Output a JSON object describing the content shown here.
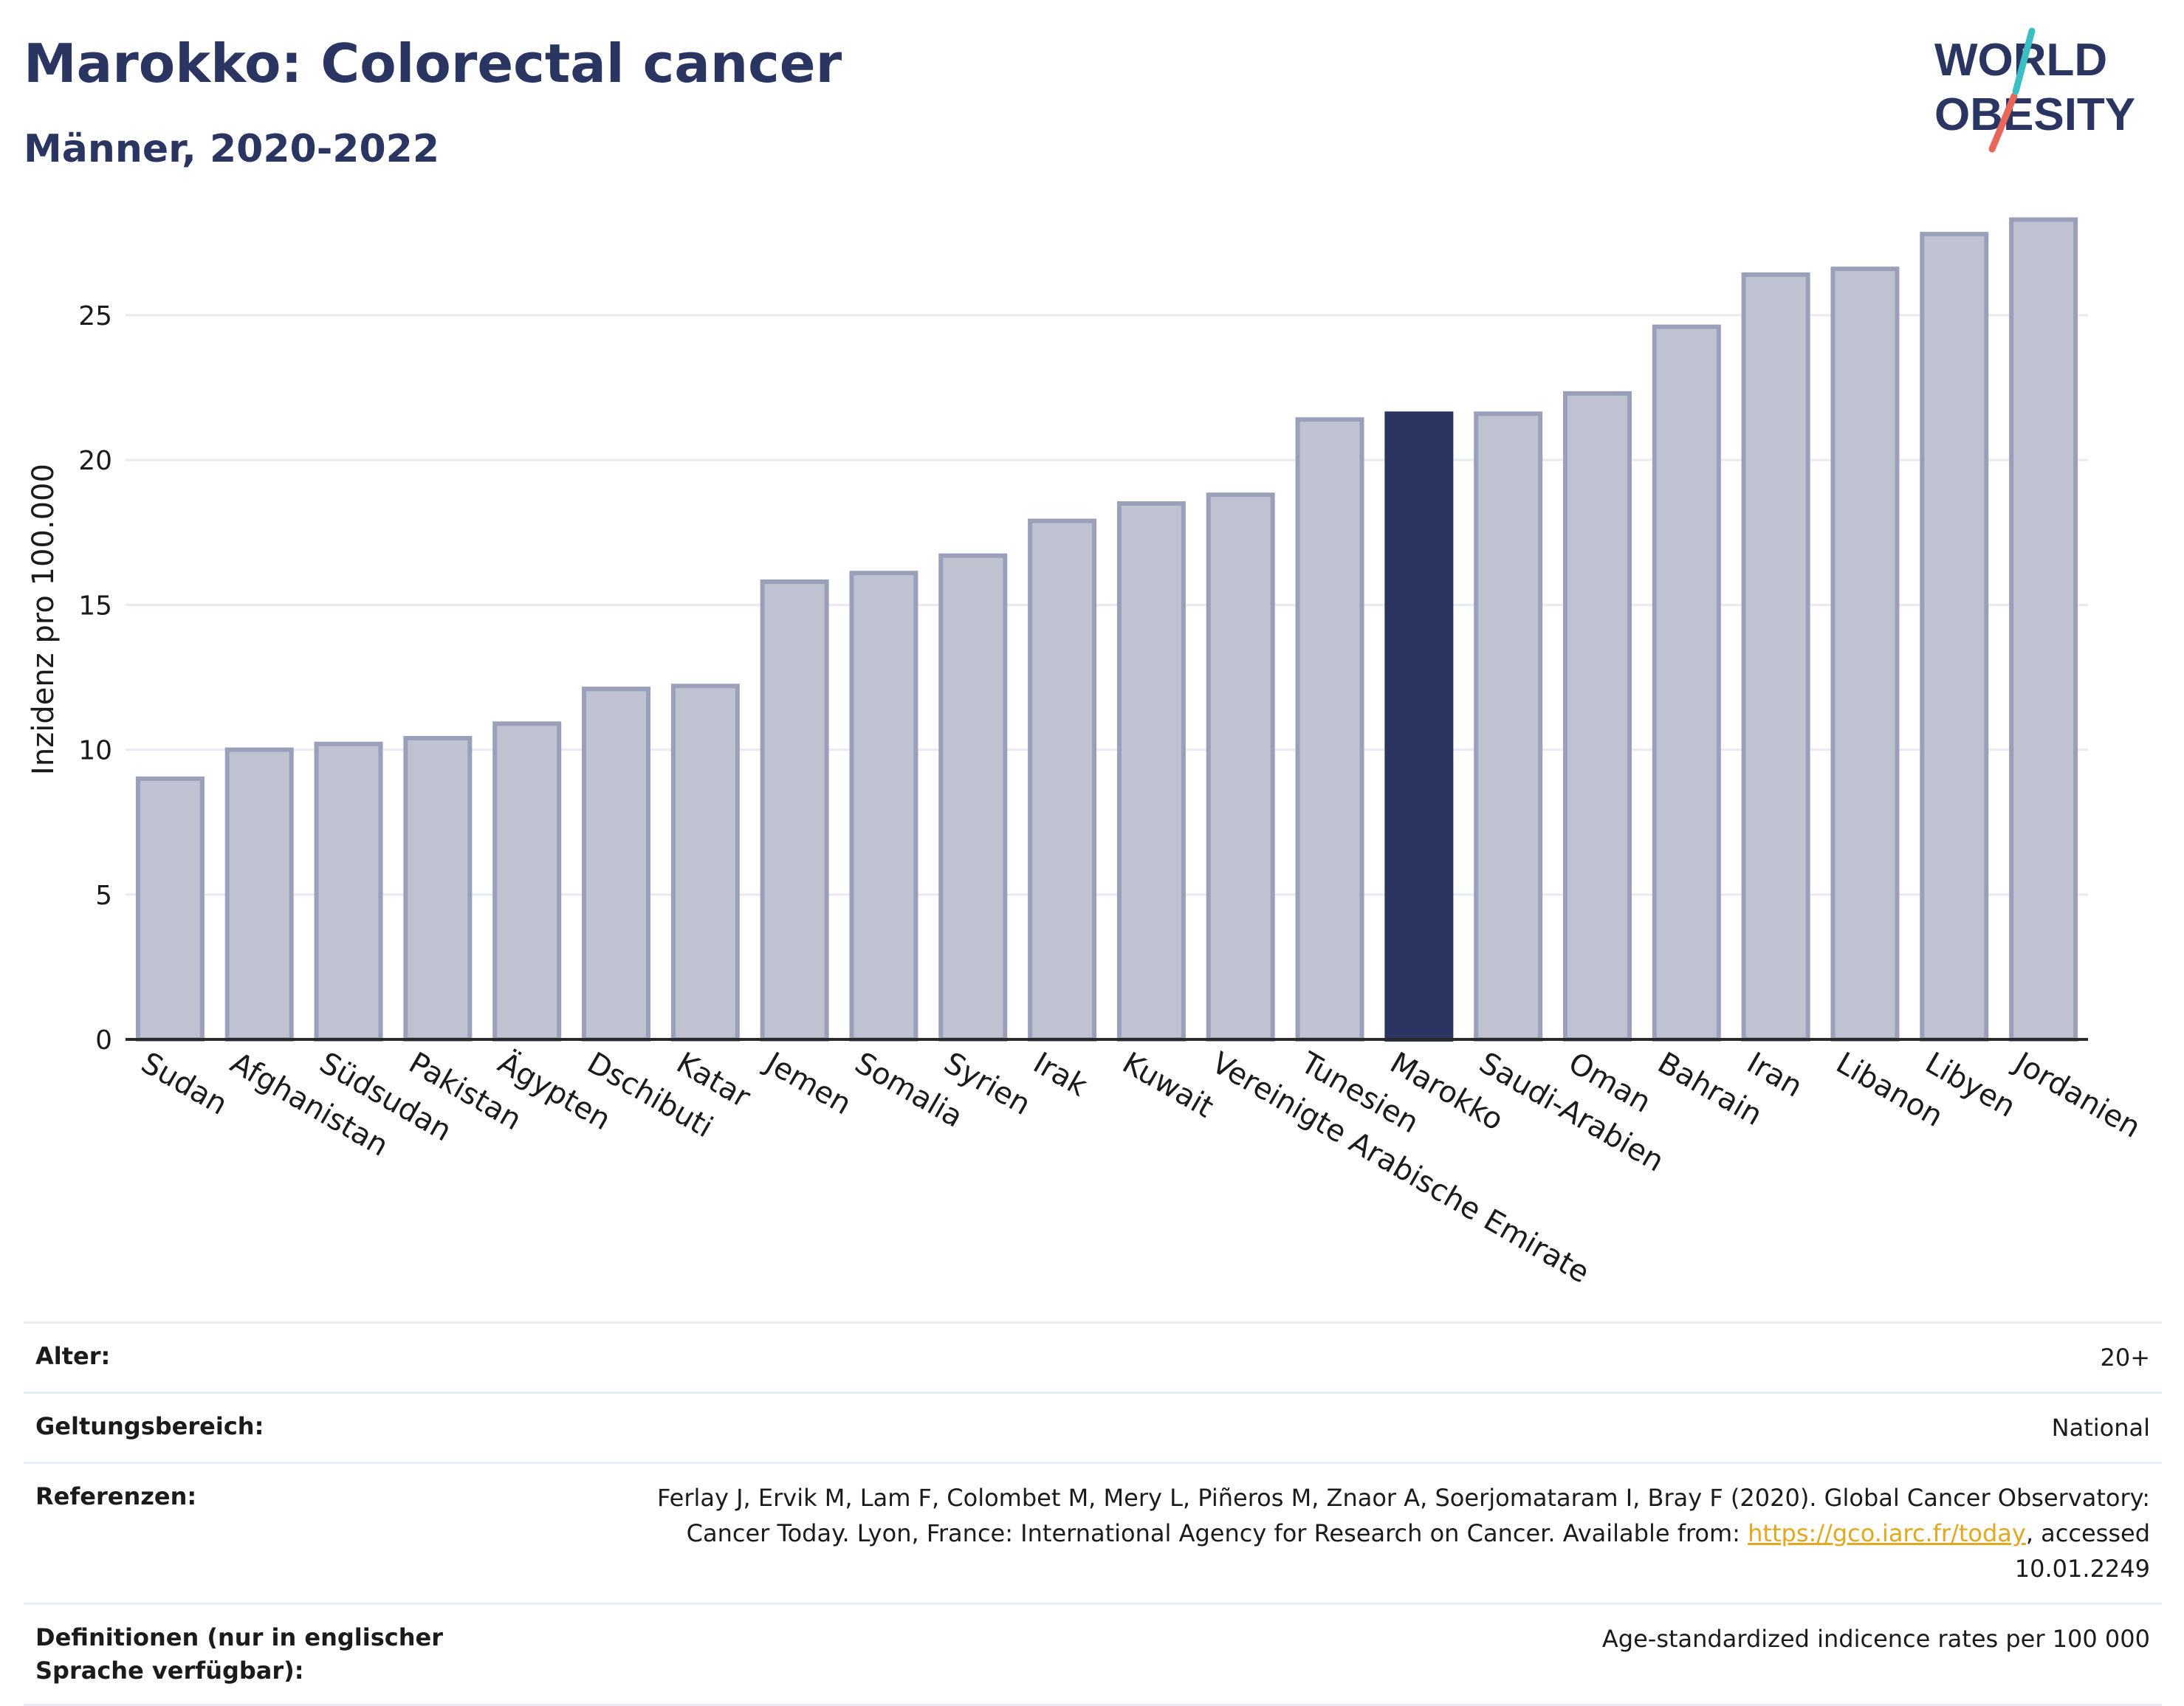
{
  "header": {
    "title": "Marokko: Colorectal cancer",
    "subtitle": "Männer, 2020-2022"
  },
  "logo": {
    "line1": "WORLD",
    "line2": "OBESITY"
  },
  "colors": {
    "bar": "#bfc2d0",
    "bar_border": "#9aa0ba",
    "highlight": "#2a3561",
    "grid": "#e8eaef"
  },
  "chart_data": {
    "type": "bar",
    "ylabel": "Inzidenz pro 100.000",
    "xlabel": "",
    "ylim": [
      0,
      29
    ],
    "yticks": [
      0,
      5,
      10,
      15,
      20,
      25
    ],
    "grid": true,
    "highlight": "Marokko",
    "categories": [
      "Sudan",
      "Afghanistan",
      "Südsudan",
      "Pakistan",
      "Ägypten",
      "Dschibuti",
      "Katar",
      "Jemen",
      "Somalia",
      "Syrien",
      "Irak",
      "Kuwait",
      "Vereinigte Arabische Emirate",
      "Tunesien",
      "Marokko",
      "Saudi-Arabien",
      "Oman",
      "Bahrain",
      "Iran",
      "Libanon",
      "Libyen",
      "Jordanien"
    ],
    "values": [
      9.0,
      10.0,
      10.2,
      10.4,
      10.9,
      12.1,
      12.2,
      15.8,
      16.1,
      16.7,
      17.9,
      18.5,
      18.8,
      21.4,
      21.6,
      21.6,
      22.3,
      24.6,
      26.4,
      26.6,
      27.8,
      28.3
    ]
  },
  "meta": {
    "age_label": "Alter:",
    "age_value": "20+",
    "scope_label": "Geltungsbereich:",
    "scope_value": "National",
    "ref_label": "Referenzen:",
    "ref_text1": "Ferlay J, Ervik M, Lam F, Colombet M, Mery L, Piñeros M, Znaor A, Soerjomataram I, Bray F (2020). Global Cancer Observatory: Cancer Today. Lyon, France: International Agency for Research on Cancer. Available from: ",
    "ref_link": "https://gco.iarc.fr/today",
    "ref_text2": ", accessed 10.01.2249",
    "def_label": "Definitionen (nur in englischer Sprache verfügbar):",
    "def_value": "Age-standardized indicence rates per 100 000"
  }
}
